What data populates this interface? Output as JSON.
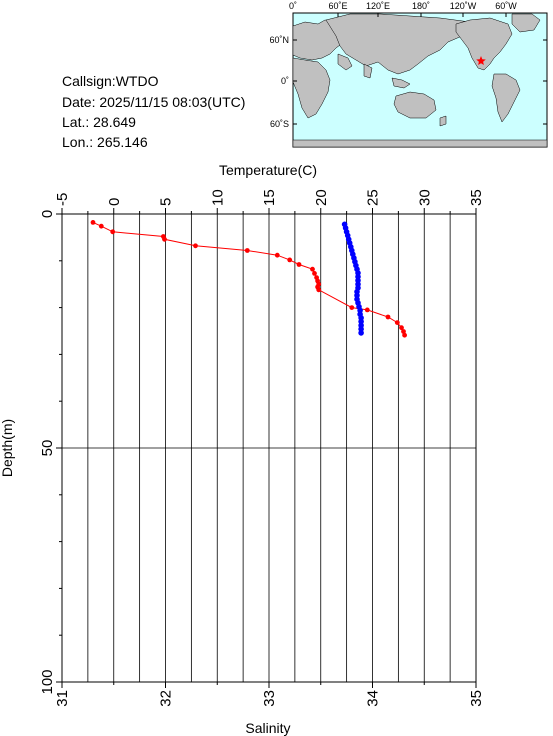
{
  "info": {
    "callsign": "Callsign:WTDO",
    "date": "Date:  2025/11/15 08:03(UTC)",
    "lat": "Lat.:   28.649",
    "lon": "Lon.:  265.146"
  },
  "map": {
    "top_ticks": [
      "0˚",
      "60˚E",
      "120˚E",
      "180˚",
      "120˚W",
      "60˚W"
    ],
    "left_ticks": [
      "60˚N",
      "0˚",
      "60˚S"
    ],
    "ocean_color": "#ccffff",
    "land_color": "#c0c0c0",
    "marker_color": "#ff0000",
    "marker_icon": "star-icon"
  },
  "chart_data": {
    "type": "line",
    "top_axis_label": "Temperature(C)",
    "bottom_axis_label": "Salinity",
    "left_axis_label": "Depth(m)",
    "temperature_ticks": [
      "-5",
      "0",
      "5",
      "10",
      "15",
      "20",
      "25",
      "30",
      "35"
    ],
    "salinity_ticks": [
      "31",
      "32",
      "33",
      "34",
      "35"
    ],
    "depth_ticks": [
      "0",
      "50",
      "100"
    ],
    "temperature_range": [
      -5,
      35
    ],
    "salinity_range": [
      31,
      35
    ],
    "depth_range": [
      0,
      100
    ],
    "colors": {
      "temperature": "#ff0000",
      "salinity": "#0000ff"
    },
    "series": [
      {
        "key": "temperature",
        "depth": [
          1.8,
          2.6,
          3.8,
          4.8,
          5.4,
          6.8,
          7.8,
          8.8,
          9.8,
          10.8,
          11.8,
          12.7,
          13.6,
          14.3,
          15.0,
          15.6,
          16.2,
          20.0,
          20.5,
          22.0,
          23.2,
          24.3,
          25.1,
          25.9
        ],
        "values": [
          -2.0,
          -1.2,
          -0.1,
          4.8,
          4.9,
          7.9,
          12.9,
          15.8,
          17.0,
          17.9,
          19.2,
          19.4,
          19.6,
          19.7,
          19.8,
          19.7,
          19.8,
          23.0,
          24.5,
          26.5,
          27.4,
          27.8,
          28.0,
          28.1
        ]
      },
      {
        "key": "salinity",
        "depth": [
          2.2,
          3.0,
          3.8,
          4.6,
          5.4,
          6.2,
          7.0,
          7.8,
          8.6,
          9.4,
          10.2,
          11.0,
          11.8,
          12.6,
          13.4,
          14.2,
          15.0,
          15.8,
          16.6,
          17.4,
          18.2,
          19.0,
          19.8,
          20.6,
          21.4,
          22.2,
          23.0,
          23.8,
          24.6,
          25.4
        ],
        "values": [
          33.73,
          33.74,
          33.75,
          33.76,
          33.77,
          33.78,
          33.79,
          33.8,
          33.81,
          33.82,
          33.83,
          33.84,
          33.85,
          33.86,
          33.86,
          33.86,
          33.86,
          33.86,
          33.85,
          33.85,
          33.85,
          33.86,
          33.87,
          33.88,
          33.88,
          33.89,
          33.89,
          33.89,
          33.89,
          33.89
        ]
      }
    ]
  }
}
